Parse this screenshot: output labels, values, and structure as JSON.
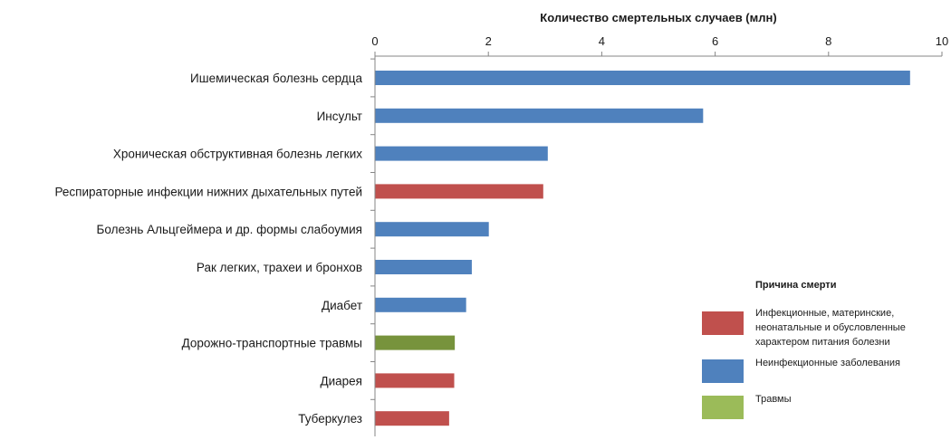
{
  "chart_data": {
    "type": "bar",
    "orientation": "horizontal",
    "xlabel": "Количество смертельных случаев (млн)",
    "xlim": [
      0,
      10
    ],
    "x_ticks": [
      "0",
      "2",
      "4",
      "6",
      "8",
      "10"
    ],
    "categories": [
      "Ишемическая болезнь сердца",
      "Инсульт",
      "Хроническая обструктивная болезнь легких",
      "Респираторные инфекции нижних дыхательных путей",
      "Болезнь Альцгеймера и др. формы слабоумия",
      "Рак легких, трахеи и бронхов",
      "Диабет",
      "Дорожно-транспортные травмы",
      "Диарея",
      "Туберкулез"
    ],
    "values": [
      9.43,
      5.78,
      3.04,
      2.96,
      2.0,
      1.7,
      1.6,
      1.4,
      1.39,
      1.3
    ],
    "groups": [
      "noncommunicable",
      "noncommunicable",
      "noncommunicable",
      "communicable",
      "noncommunicable",
      "noncommunicable",
      "noncommunicable",
      "injuries",
      "communicable",
      "communicable"
    ],
    "legend": {
      "title": "Причина смерти",
      "placement": "right",
      "items": [
        {
          "key": "communicable",
          "label_lines": [
            "Инфекционные, материнские,",
            "неонатальные и обусловленные",
            "характером питания болезни"
          ]
        },
        {
          "key": "noncommunicable",
          "label_lines": [
            "Неинфекционные заболевания"
          ]
        },
        {
          "key": "injuries",
          "label_lines": [
            "Травмы"
          ]
        }
      ]
    },
    "colors": {
      "communicable": "#c0504d",
      "noncommunicable": "#4f81bd",
      "injuries": "#77933c",
      "injuries_legend": "#9bbb59",
      "axis": "#868686"
    },
    "grid": false
  }
}
